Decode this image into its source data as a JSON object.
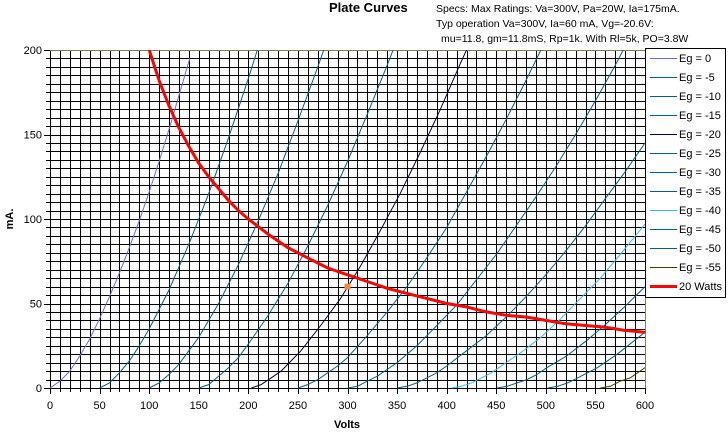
{
  "chart_data": {
    "type": "line",
    "title": "Plate Curves",
    "specs": [
      "Specs: Max Ratings: Va=300V, Pa=20W, Ia=175mA.",
      "Typ operation Va=300V, Ia=60 mA, Vg=-20.6V:",
      "mu=11.8, gm=11.8mS, Rp=1k. With Rl=5k, PO=3.8W"
    ],
    "xlabel": "Volts",
    "ylabel": "mA.",
    "xlim": [
      0,
      600
    ],
    "ylim": [
      0,
      200
    ],
    "xticks": [
      "0",
      "50",
      "100",
      "150",
      "200",
      "250",
      "300",
      "350",
      "400",
      "450",
      "500",
      "550",
      "600"
    ],
    "yticks": [
      "0",
      "50",
      "100",
      "150",
      "200"
    ],
    "grid": true,
    "grid_step_x": 10,
    "grid_step_y": 5,
    "legend_position": "right",
    "series": [
      {
        "name": "Eg = 0",
        "color": "#6666ff",
        "points": [
          [
            0,
            0
          ],
          [
            10,
            4
          ],
          [
            20,
            10
          ],
          [
            30,
            19
          ],
          [
            40,
            29
          ],
          [
            50,
            41
          ],
          [
            60,
            54
          ],
          [
            70,
            68
          ],
          [
            80,
            83
          ],
          [
            90,
            99
          ],
          [
            100,
            116
          ],
          [
            110,
            134
          ],
          [
            120,
            153
          ],
          [
            130,
            173
          ],
          [
            141,
            195
          ]
        ]
      },
      {
        "name": "Eg = -5",
        "color": "#006080",
        "points": [
          [
            50,
            0
          ],
          [
            60,
            3
          ],
          [
            70,
            9
          ],
          [
            80,
            16
          ],
          [
            90,
            25
          ],
          [
            100,
            35
          ],
          [
            120,
            58
          ],
          [
            140,
            85
          ],
          [
            160,
            115
          ],
          [
            180,
            148
          ],
          [
            200,
            183
          ],
          [
            209,
            200
          ]
        ]
      },
      {
        "name": "Eg = -10",
        "color": "#006080",
        "points": [
          [
            100,
            0
          ],
          [
            110,
            3
          ],
          [
            120,
            8
          ],
          [
            130,
            14
          ],
          [
            140,
            22
          ],
          [
            150,
            30
          ],
          [
            170,
            50
          ],
          [
            190,
            73
          ],
          [
            210,
            99
          ],
          [
            230,
            127
          ],
          [
            250,
            158
          ],
          [
            270,
            190
          ],
          [
            276,
            200
          ]
        ]
      },
      {
        "name": "Eg = -15",
        "color": "#006080",
        "points": [
          [
            150,
            0
          ],
          [
            160,
            2
          ],
          [
            170,
            7
          ],
          [
            180,
            12
          ],
          [
            190,
            18
          ],
          [
            200,
            26
          ],
          [
            220,
            43
          ],
          [
            240,
            62
          ],
          [
            260,
            84
          ],
          [
            280,
            108
          ],
          [
            300,
            134
          ],
          [
            320,
            162
          ],
          [
            340,
            191
          ],
          [
            346,
            200
          ]
        ]
      },
      {
        "name": "Eg = -20",
        "color": "#000040",
        "points": [
          [
            203,
            0
          ],
          [
            213,
            2
          ],
          [
            223,
            6
          ],
          [
            233,
            10
          ],
          [
            243,
            16
          ],
          [
            253,
            22
          ],
          [
            273,
            37
          ],
          [
            293,
            53
          ],
          [
            313,
            72
          ],
          [
            333,
            93
          ],
          [
            353,
            115
          ],
          [
            373,
            139
          ],
          [
            393,
            164
          ],
          [
            413,
            191
          ],
          [
            420,
            200
          ]
        ]
      },
      {
        "name": "Eg = -25",
        "color": "#006080",
        "points": [
          [
            250,
            0
          ],
          [
            260,
            2
          ],
          [
            270,
            5
          ],
          [
            280,
            9
          ],
          [
            290,
            13
          ],
          [
            300,
            18
          ],
          [
            320,
            31
          ],
          [
            340,
            45
          ],
          [
            360,
            60
          ],
          [
            380,
            77
          ],
          [
            400,
            95
          ],
          [
            420,
            116
          ],
          [
            440,
            137
          ],
          [
            460,
            159
          ],
          [
            480,
            182
          ],
          [
            495,
            200
          ]
        ]
      },
      {
        "name": "Eg = -30",
        "color": "#006080",
        "points": [
          [
            300,
            0
          ],
          [
            310,
            1
          ],
          [
            320,
            4
          ],
          [
            330,
            7
          ],
          [
            340,
            11
          ],
          [
            350,
            15
          ],
          [
            370,
            25
          ],
          [
            390,
            37
          ],
          [
            410,
            49
          ],
          [
            430,
            64
          ],
          [
            450,
            79
          ],
          [
            470,
            96
          ],
          [
            490,
            113
          ],
          [
            510,
            131
          ],
          [
            530,
            150
          ],
          [
            550,
            170
          ],
          [
            570,
            191
          ],
          [
            578,
            200
          ]
        ]
      },
      {
        "name": "Eg = -35",
        "color": "#006080",
        "points": [
          [
            350,
            0
          ],
          [
            360,
            1
          ],
          [
            370,
            3
          ],
          [
            380,
            6
          ],
          [
            390,
            9
          ],
          [
            400,
            13
          ],
          [
            420,
            22
          ],
          [
            440,
            31
          ],
          [
            460,
            42
          ],
          [
            480,
            54
          ],
          [
            500,
            67
          ],
          [
            520,
            81
          ],
          [
            540,
            96
          ],
          [
            560,
            112
          ],
          [
            580,
            128
          ],
          [
            600,
            145
          ]
        ]
      },
      {
        "name": "Eg = -40",
        "color": "#33bbee",
        "points": [
          [
            405,
            0
          ],
          [
            415,
            1
          ],
          [
            425,
            3
          ],
          [
            435,
            6
          ],
          [
            445,
            9
          ],
          [
            455,
            13
          ],
          [
            475,
            21
          ],
          [
            495,
            30
          ],
          [
            515,
            41
          ],
          [
            535,
            53
          ],
          [
            555,
            65
          ],
          [
            575,
            79
          ],
          [
            600,
            97
          ]
        ]
      },
      {
        "name": "Eg = -45",
        "color": "#006080",
        "points": [
          [
            451,
            0
          ],
          [
            461,
            1
          ],
          [
            471,
            3
          ],
          [
            481,
            5
          ],
          [
            491,
            8
          ],
          [
            501,
            12
          ],
          [
            521,
            19
          ],
          [
            541,
            28
          ],
          [
            561,
            38
          ],
          [
            581,
            49
          ],
          [
            600,
            60
          ]
        ]
      },
      {
        "name": "Eg = -50",
        "color": "#006080",
        "points": [
          [
            502,
            0
          ],
          [
            512,
            1
          ],
          [
            522,
            3
          ],
          [
            532,
            6
          ],
          [
            542,
            9
          ],
          [
            552,
            12
          ],
          [
            572,
            20
          ],
          [
            600,
            33
          ]
        ]
      },
      {
        "name": "Eg = -55",
        "color": "#334400",
        "points": [
          [
            555,
            0
          ],
          [
            565,
            1
          ],
          [
            575,
            4
          ],
          [
            585,
            6
          ],
          [
            600,
            12
          ]
        ]
      },
      {
        "name": "20 Watts",
        "color": "#ff0000",
        "points": [
          [
            100,
            200
          ],
          [
            110,
            182
          ],
          [
            120,
            167
          ],
          [
            130,
            154
          ],
          [
            140,
            143
          ],
          [
            150,
            133
          ],
          [
            160,
            125
          ],
          [
            170,
            118
          ],
          [
            180,
            111
          ],
          [
            190,
            105
          ],
          [
            200,
            100
          ],
          [
            220,
            91
          ],
          [
            240,
            83
          ],
          [
            260,
            77
          ],
          [
            280,
            71
          ],
          [
            300,
            67
          ],
          [
            320,
            63
          ],
          [
            340,
            59
          ],
          [
            360,
            56
          ],
          [
            380,
            53
          ],
          [
            400,
            50
          ],
          [
            420,
            48
          ],
          [
            440,
            45
          ],
          [
            460,
            43
          ],
          [
            480,
            42
          ],
          [
            500,
            40
          ],
          [
            520,
            38
          ],
          [
            540,
            37
          ],
          [
            560,
            36
          ],
          [
            580,
            34
          ],
          [
            600,
            33
          ]
        ]
      }
    ],
    "operating_point": {
      "v": 300,
      "ma": 60,
      "color": "#ff8833"
    },
    "frame_top_color": "#808060"
  }
}
